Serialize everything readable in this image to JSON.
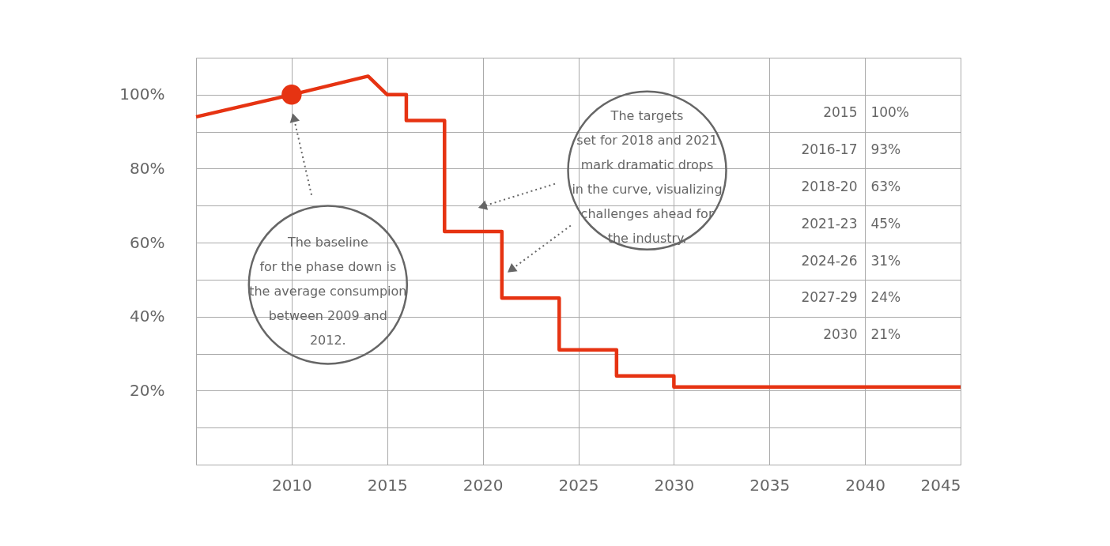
{
  "chart_data": {
    "type": "line",
    "x": [
      2005,
      2010,
      2014,
      2015,
      2016,
      2016,
      2018,
      2018,
      2021,
      2021,
      2024,
      2024,
      2027,
      2027,
      2030,
      2030,
      2045
    ],
    "series": [
      {
        "color": "#e63312",
        "marker": "none",
        "values": [
          94,
          100,
          105,
          100,
          100,
          93,
          93,
          63,
          63,
          45,
          45,
          31,
          31,
          24,
          24,
          21,
          21
        ]
      },
      {
        "type": "scatter",
        "color": "#e63312",
        "marker": "circle",
        "x": [
          2010
        ],
        "values": [
          100
        ]
      }
    ],
    "xlim": [
      2005,
      2045
    ],
    "xticks": [
      {
        "value": 2005,
        "label": null
      },
      2010,
      2015,
      2020,
      2025,
      2030,
      2035,
      2040,
      2045
    ],
    "ylim": [
      0,
      110
    ],
    "yticks": [
      {
        "value": 0,
        "label": null
      },
      {
        "value": 10,
        "label": null
      },
      {
        "value": 20,
        "label": "20%"
      },
      {
        "value": 30,
        "label": null
      },
      {
        "value": 40,
        "label": "40%"
      },
      {
        "value": 50,
        "label": null
      },
      {
        "value": 60,
        "label": "60%"
      },
      {
        "value": 70,
        "label": null
      },
      {
        "value": 80,
        "label": "80%"
      },
      {
        "value": 90,
        "label": null
      },
      {
        "value": 100,
        "label": "100%"
      },
      {
        "value": 110,
        "label": null
      }
    ],
    "grid": true,
    "legend": false,
    "annotations": [
      "The baseline\nfor the phase down is\nthe average consumpion\nbetween 2009 and\n2012.",
      "The targets\nset for 2018 and 2021\nmark dramatic drops\nin the curve, visualizing\nchallenges ahead for\nthe industry.",
      "2015",
      "100%",
      "2016-17",
      "93%",
      "2018-20",
      "63%",
      "2021-23",
      "45%",
      "2024-26",
      "31%",
      "2027-29",
      "24%",
      "2030",
      "21%"
    ]
  }
}
